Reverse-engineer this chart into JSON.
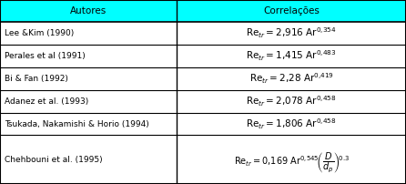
{
  "header": [
    "Autores",
    "Correlações"
  ],
  "header_bg": "#00FFFF",
  "header_text_color": "#000000",
  "table_bg": "#FFFFFF",
  "border_color": "#000000",
  "rows": [
    {
      "author": "Lee &Kim (1990)",
      "formula": "$\\mathrm{Re}_{tr} = 2{,}916\\ \\mathrm{Ar}^{0{,}354}$",
      "special": false
    },
    {
      "author": "Perales et al (1991)",
      "formula": "$\\mathrm{Re}_{tr} = 1{,}415\\ \\mathrm{Ar}^{0{,}483}$",
      "special": false
    },
    {
      "author": "Bi & Fan (1992)",
      "formula": "$\\mathrm{Re}_{tr} = 2{,}28\\ \\mathrm{Ar}^{0{,}419}$",
      "special": false
    },
    {
      "author": "Adanez et al. (1993)",
      "formula": "$\\mathrm{Re}_{tr} = 2{,}078\\ \\mathrm{Ar}^{0{,}458}$",
      "special": false
    },
    {
      "author": "Tsukada, Nakamishi & Horio (1994)",
      "formula": "$\\mathrm{Re}_{tr} = 1{,}806\\ \\mathrm{Ar}^{0{,}458}$",
      "special": false
    },
    {
      "author": "Chehbouni et al. (1995)",
      "formula": "$\\mathrm{Re}_{tr} = 0{,}169\\ \\mathrm{Ar}^{0{,}545}\\!\\left(\\dfrac{D}{d_p}\\right)^{\\!0.3}$",
      "special": true
    }
  ],
  "col_split": 0.435,
  "figsize": [
    4.46,
    2.02
  ],
  "dpi": 100,
  "font_size_header": 7.5,
  "font_size_author": 6.5,
  "font_size_formula": 7.5,
  "font_size_formula_special": 7.0
}
